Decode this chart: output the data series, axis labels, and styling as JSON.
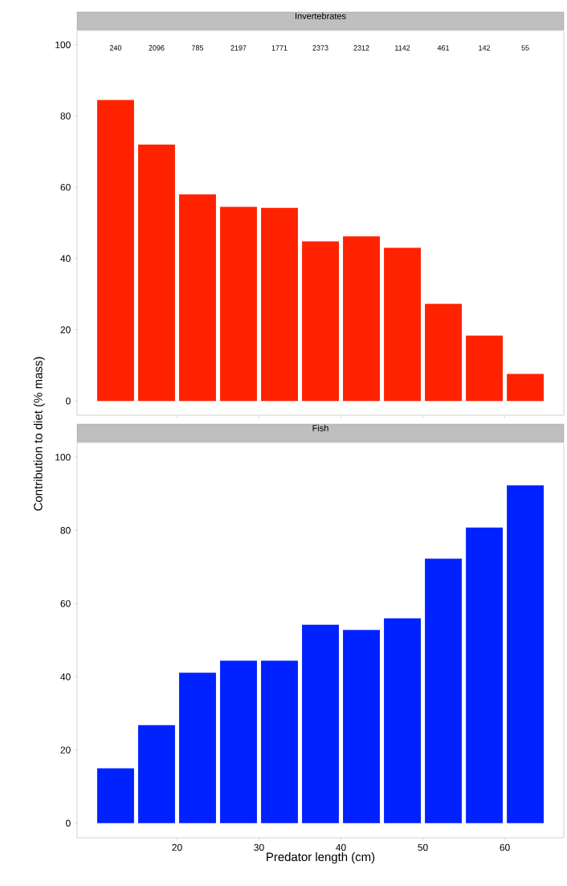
{
  "chart_data": [
    {
      "type": "bar",
      "title": "Invertebrates",
      "ylabel": "Contribution to diet (% mass)",
      "x": [
        12.5,
        17.5,
        22.5,
        27.5,
        32.5,
        37.5,
        42.5,
        47.5,
        52.5,
        57.5,
        62.5
      ],
      "values": [
        84.5,
        72,
        58,
        54.5,
        54.2,
        44.8,
        46.2,
        43,
        27.3,
        18.4,
        7.6
      ],
      "color": "#ff2200",
      "xlim": [
        7.8,
        67.2
      ],
      "ylim": [
        -4,
        104
      ],
      "xticks": [
        20,
        30,
        40,
        50,
        60
      ],
      "yticks": [
        0,
        20,
        40,
        60,
        80,
        100
      ],
      "tick_labels": "y",
      "annotations": [
        "240",
        "2096",
        "785",
        "2197",
        "1771",
        "2373",
        "2312",
        "1142",
        "461",
        "142",
        "55"
      ]
    },
    {
      "type": "bar",
      "title": "Fish",
      "xlabel": "Predator length (cm)",
      "x": [
        12.5,
        17.5,
        22.5,
        27.5,
        32.5,
        37.5,
        42.5,
        47.5,
        52.5,
        57.5,
        62.5
      ],
      "values": [
        15,
        26.8,
        41.1,
        44.4,
        44.4,
        54.2,
        52.8,
        56,
        72.3,
        80.8,
        92.3
      ],
      "color": "#0022ff",
      "xlim": [
        7.8,
        67.2
      ],
      "ylim": [
        -4,
        104
      ],
      "xticks": [
        20,
        30,
        40,
        50,
        60
      ],
      "yticks": [
        0,
        20,
        40,
        60,
        80,
        100
      ]
    }
  ]
}
